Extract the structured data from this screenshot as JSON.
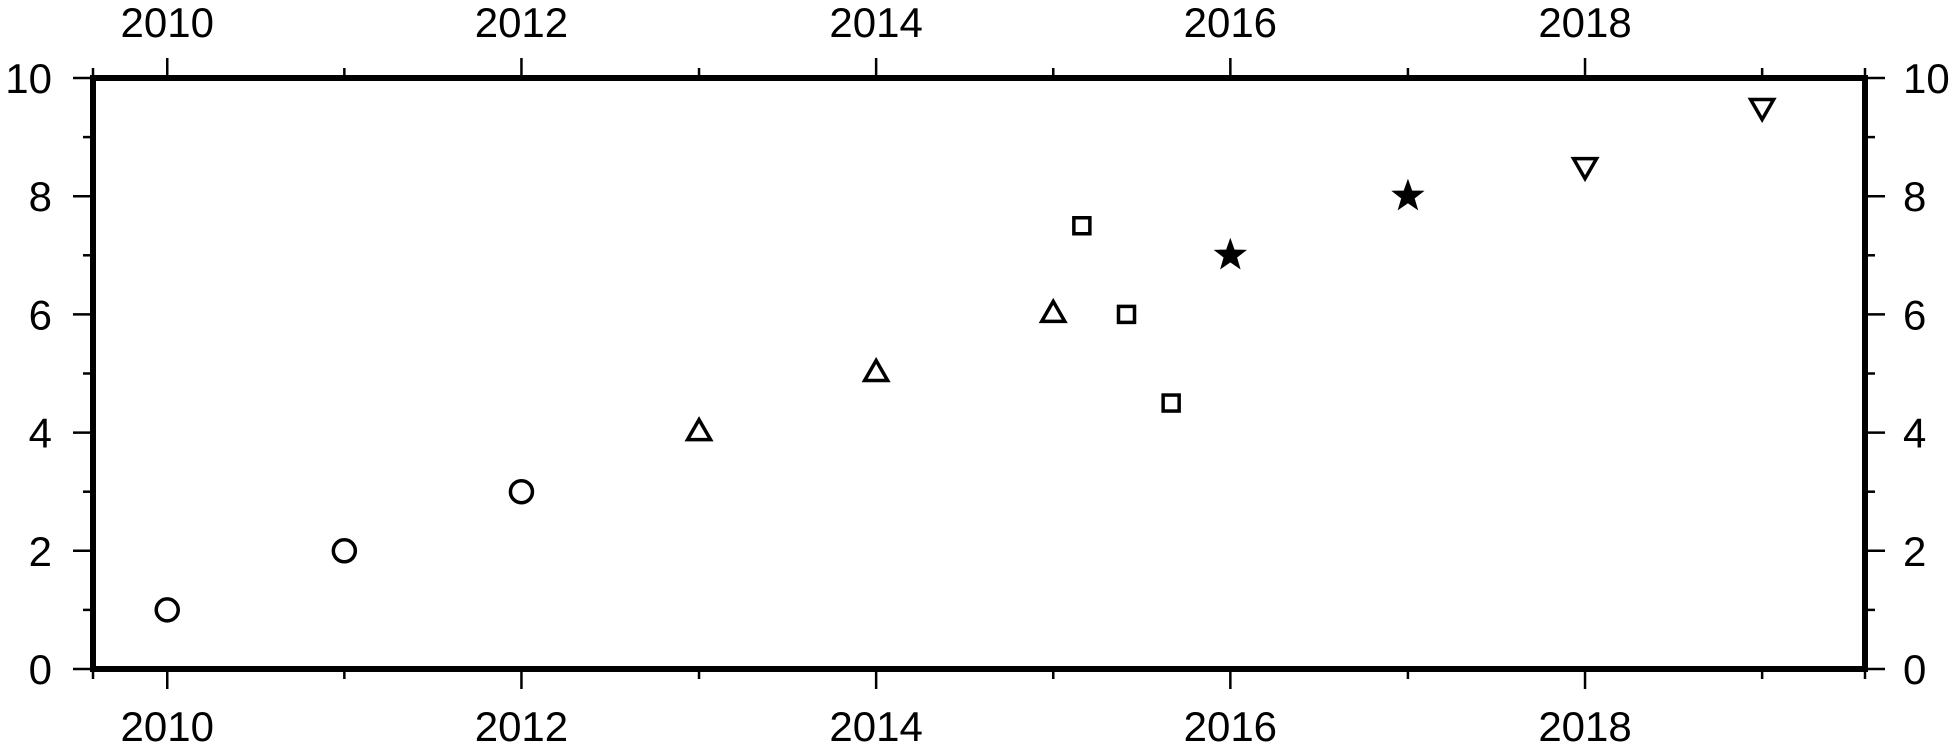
{
  "chart_data": {
    "type": "scatter",
    "title": "",
    "xlabel": "",
    "ylabel": "",
    "x_axis": {
      "type": "date",
      "range": [
        "2009-08-01",
        "2019-08-01"
      ]
    },
    "xlim": [
      "2009-08-01",
      "2019-08-01"
    ],
    "ylim": [
      0,
      10
    ],
    "grid": false,
    "legend": "none",
    "x_major_ticks": [
      {
        "date": "2010-01-01",
        "label": "2010"
      },
      {
        "date": "2012-01-01",
        "label": "2012"
      },
      {
        "date": "2014-01-01",
        "label": "2014"
      },
      {
        "date": "2016-01-01",
        "label": "2016"
      },
      {
        "date": "2018-01-01",
        "label": "2018"
      }
    ],
    "x_minor_ticks": [
      "2009-08-01",
      "2011-01-01",
      "2013-01-01",
      "2015-01-01",
      "2017-01-01",
      "2019-01-01",
      "2019-08-01"
    ],
    "y_major_ticks": [
      {
        "value": 0,
        "label": "0"
      },
      {
        "value": 2,
        "label": "2"
      },
      {
        "value": 4,
        "label": "4"
      },
      {
        "value": 6,
        "label": "6"
      },
      {
        "value": 8,
        "label": "8"
      },
      {
        "value": 10,
        "label": "10"
      }
    ],
    "y_minor_ticks": [
      1,
      3,
      5,
      7,
      9
    ],
    "series": [
      {
        "symbol": "circle",
        "points": [
          {
            "x": "2010-01-01",
            "y": 1
          },
          {
            "x": "2011-01-01",
            "y": 2
          },
          {
            "x": "2012-01-01",
            "y": 3
          }
        ]
      },
      {
        "symbol": "triangle",
        "points": [
          {
            "x": "2013-01-01",
            "y": 4
          },
          {
            "x": "2014-01-01",
            "y": 5
          },
          {
            "x": "2015-01-01",
            "y": 6
          }
        ]
      },
      {
        "symbol": "square",
        "points": [
          {
            "x": "2015-03-01",
            "y": 7.5
          },
          {
            "x": "2015-06-01",
            "y": 6
          },
          {
            "x": "2015-09-01",
            "y": 4.5
          }
        ]
      },
      {
        "symbol": "star",
        "points": [
          {
            "x": "2016-01-01",
            "y": 7
          },
          {
            "x": "2017-01-01",
            "y": 8
          }
        ]
      },
      {
        "symbol": "inverted-triangle",
        "points": [
          {
            "x": "2018-01-01",
            "y": 8.5
          },
          {
            "x": "2019-01-01",
            "y": 9.5
          }
        ]
      }
    ]
  }
}
